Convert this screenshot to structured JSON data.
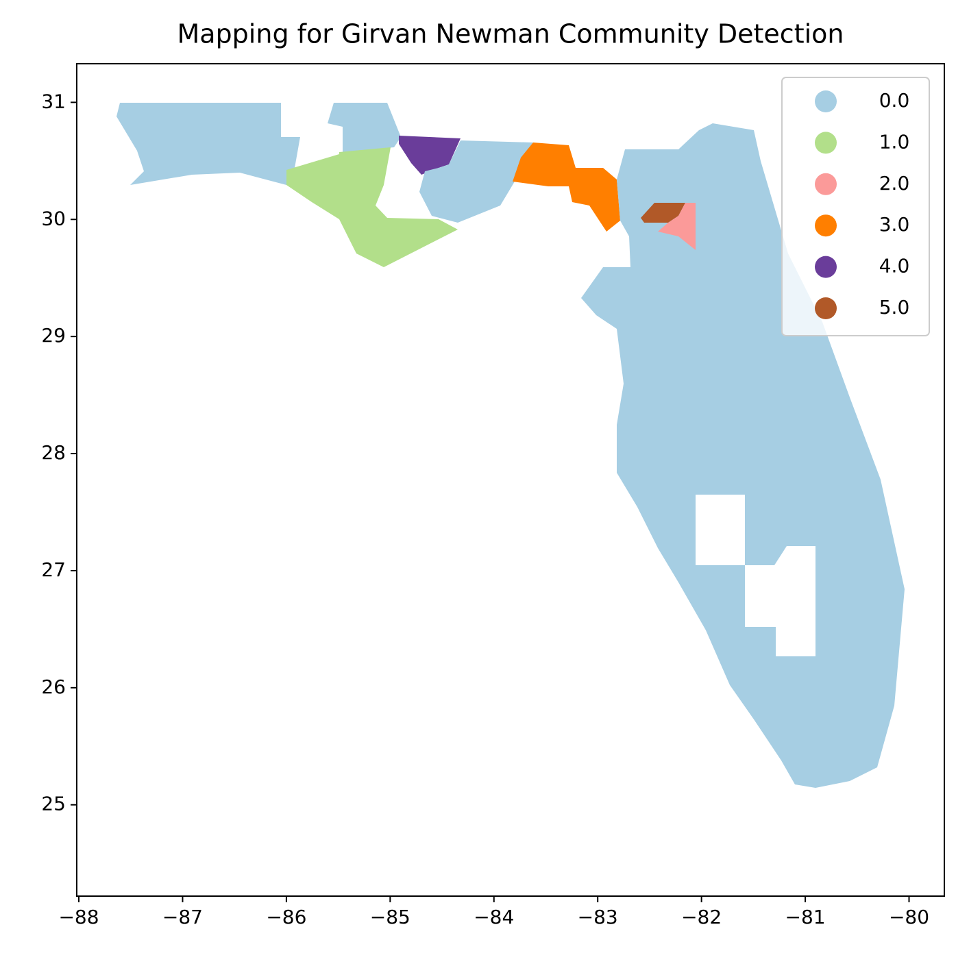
{
  "chart_data": {
    "type": "choropleth",
    "title": "Mapping for Girvan Newman Community Detection",
    "xlim": [
      -88.02,
      -79.66
    ],
    "ylim": [
      24.22,
      31.33
    ],
    "xticks": [
      {
        "value": -88,
        "label": "−88"
      },
      {
        "value": -87,
        "label": "−87"
      },
      {
        "value": -86,
        "label": "−86"
      },
      {
        "value": -85,
        "label": "−85"
      },
      {
        "value": -84,
        "label": "−84"
      },
      {
        "value": -83,
        "label": "−83"
      },
      {
        "value": -82,
        "label": "−82"
      },
      {
        "value": -81,
        "label": "−81"
      },
      {
        "value": -80,
        "label": "−80"
      }
    ],
    "yticks": [
      25,
      26,
      27,
      28,
      29,
      30,
      31
    ],
    "legend": {
      "loc": "upper right",
      "entries": [
        {
          "label": "0.0",
          "color": "#a6cee3"
        },
        {
          "label": "1.0",
          "color": "#b2df8a"
        },
        {
          "label": "2.0",
          "color": "#fb9a99"
        },
        {
          "label": "3.0",
          "color": "#ff7f00"
        },
        {
          "label": "4.0",
          "color": "#6a3d9a"
        },
        {
          "label": "5.0",
          "color": "#b15928"
        }
      ]
    }
  }
}
